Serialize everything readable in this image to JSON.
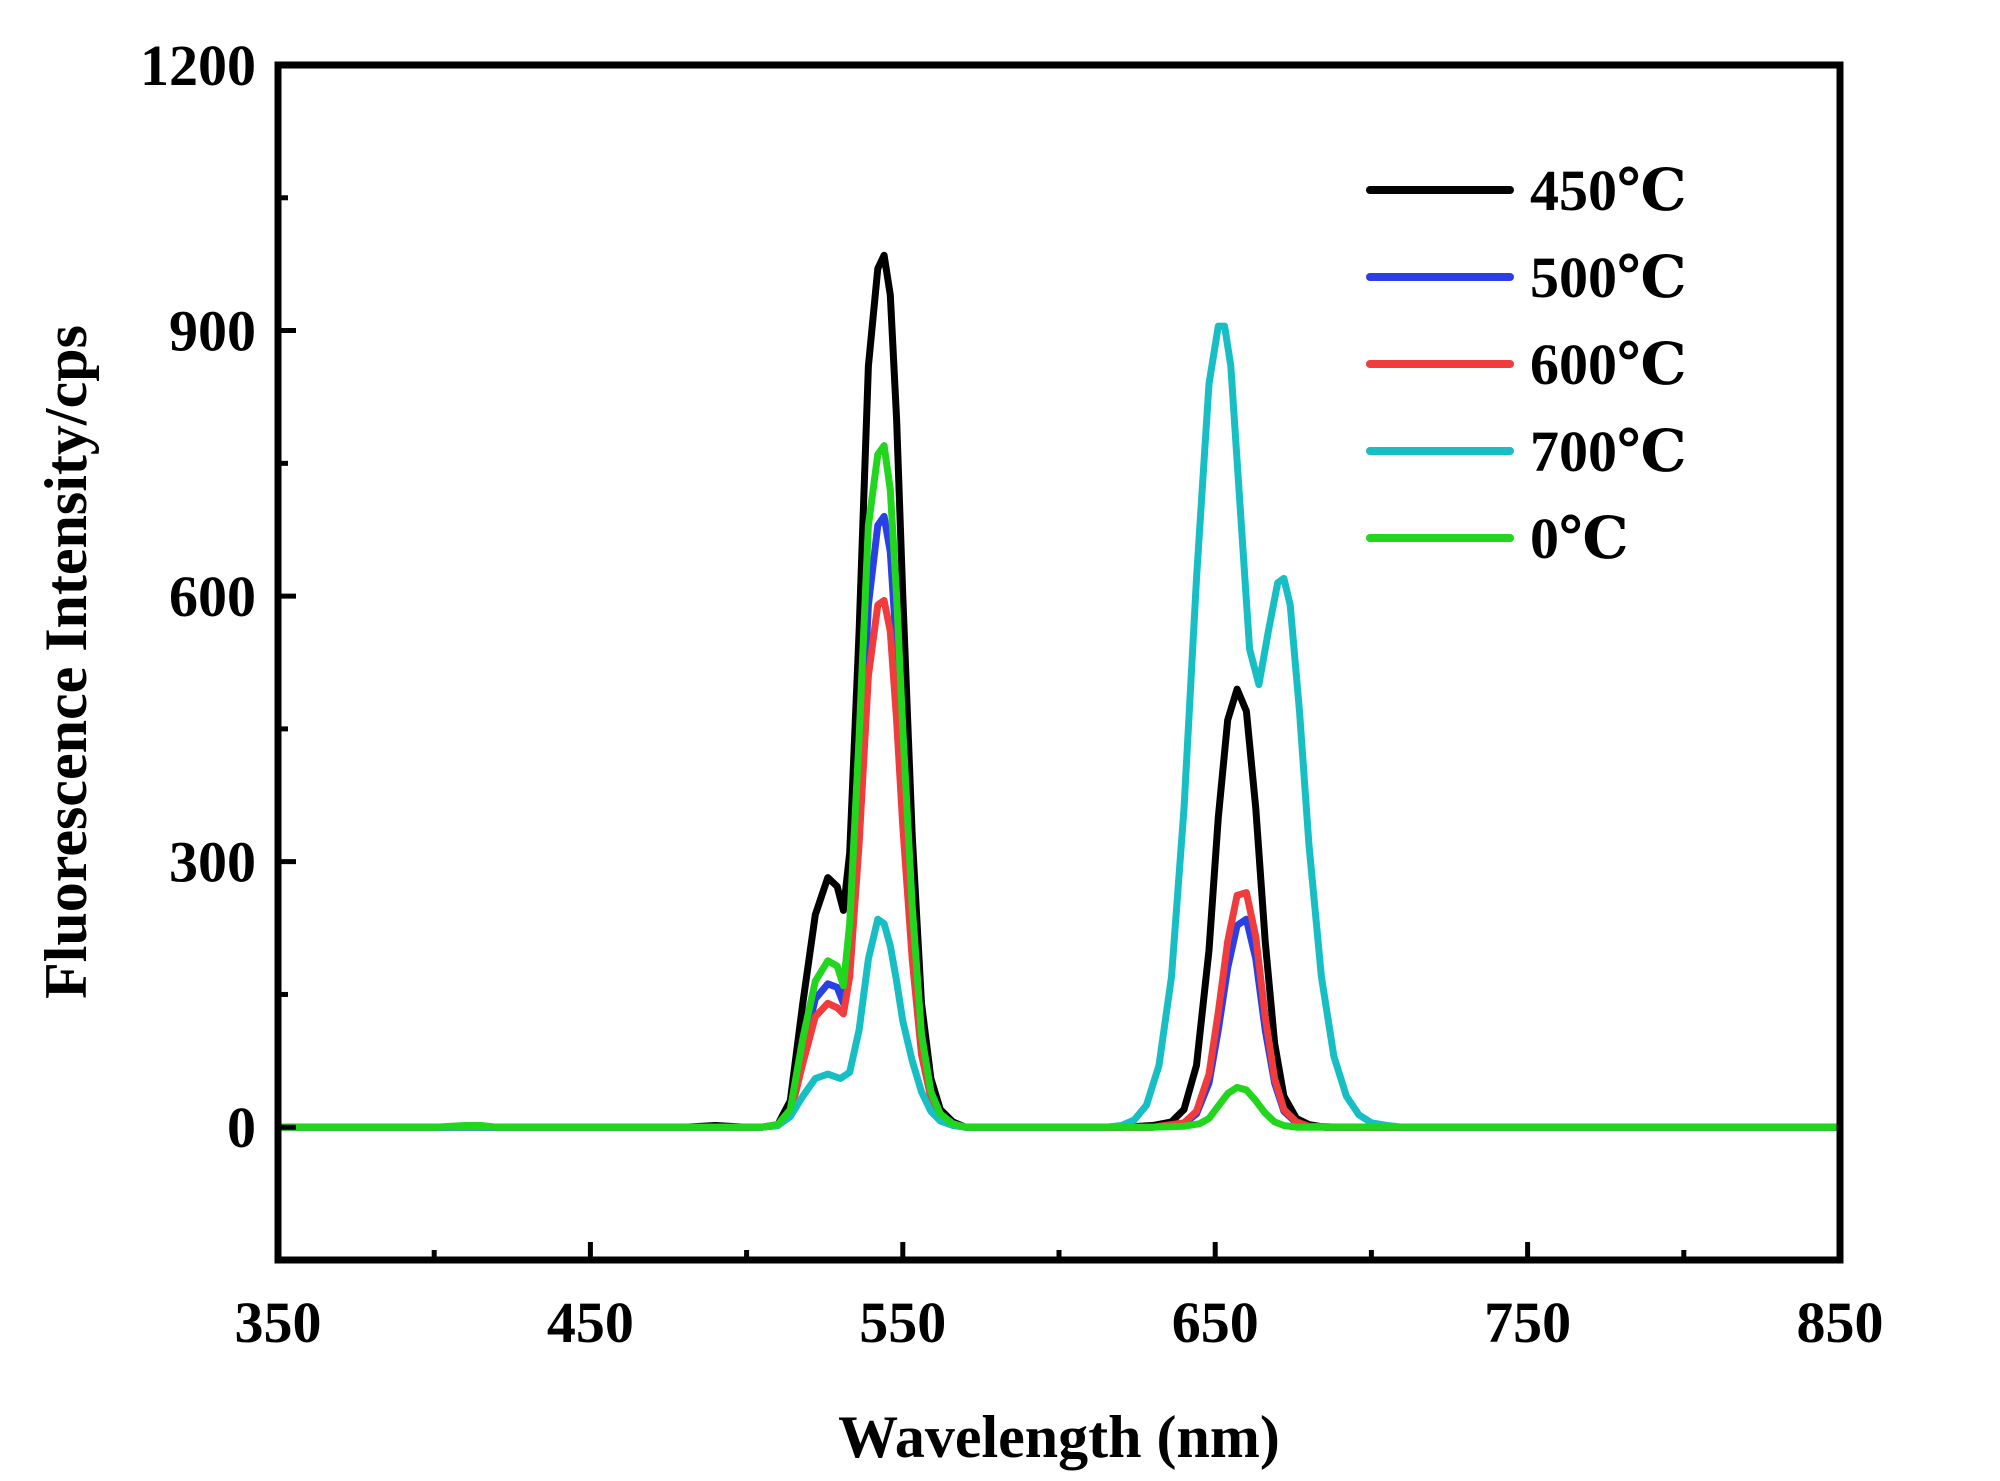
{
  "chart_data": {
    "type": "line",
    "title": "",
    "xlabel": "Wavelength (nm)",
    "ylabel": "Fluorescence Intensity/cps",
    "xlim": [
      350,
      850
    ],
    "ylim": [
      -150,
      1200
    ],
    "xticks": [
      350,
      450,
      550,
      650,
      750,
      850
    ],
    "xtick_labels": [
      "350",
      "450",
      "550",
      "650",
      "750",
      "850"
    ],
    "yticks": [
      0,
      300,
      600,
      900,
      1200
    ],
    "ytick_labels": [
      "0",
      "300",
      "600",
      "900",
      "1200"
    ],
    "grid": false,
    "legend_position": "top-right",
    "series": [
      {
        "name": "450℃",
        "color": "#000000",
        "x": [
          350,
          400,
          480,
          490,
          500,
          505,
          510,
          514,
          518,
          522,
          526,
          529,
          531,
          533,
          536,
          539,
          542,
          544,
          546,
          548,
          550,
          553,
          556,
          559,
          562,
          566,
          570,
          580,
          600,
          620,
          630,
          636,
          640,
          644,
          648,
          651,
          654,
          657,
          660,
          663,
          666,
          669,
          672,
          676,
          680,
          685,
          690,
          700,
          850
        ],
        "values": [
          0,
          0,
          0,
          2,
          0,
          0,
          3,
          30,
          140,
          240,
          282,
          272,
          245,
          310,
          560,
          860,
          970,
          985,
          940,
          800,
          600,
          330,
          140,
          55,
          20,
          6,
          0,
          0,
          0,
          0,
          2,
          6,
          20,
          70,
          200,
          350,
          460,
          495,
          470,
          360,
          210,
          95,
          35,
          10,
          3,
          0,
          0,
          0,
          0
        ]
      },
      {
        "name": "500℃",
        "color": "#2a3fe6",
        "x": [
          350,
          400,
          500,
          505,
          510,
          514,
          518,
          522,
          526,
          529,
          531,
          533,
          536,
          539,
          542,
          544,
          546,
          548,
          550,
          553,
          556,
          559,
          562,
          566,
          570,
          600,
          630,
          640,
          644,
          648,
          651,
          654,
          657,
          660,
          663,
          666,
          669,
          672,
          676,
          680,
          690,
          850
        ],
        "values": [
          0,
          0,
          0,
          0,
          2,
          18,
          85,
          145,
          162,
          158,
          140,
          200,
          380,
          590,
          680,
          690,
          650,
          540,
          400,
          220,
          95,
          38,
          14,
          4,
          0,
          0,
          0,
          4,
          15,
          50,
          110,
          180,
          228,
          235,
          190,
          110,
          50,
          18,
          5,
          1,
          0,
          0
        ]
      },
      {
        "name": "600℃",
        "color": "#f03c3c",
        "x": [
          350,
          400,
          500,
          505,
          510,
          514,
          518,
          522,
          526,
          529,
          531,
          533,
          536,
          539,
          542,
          544,
          546,
          548,
          550,
          553,
          556,
          559,
          562,
          566,
          570,
          600,
          630,
          640,
          644,
          648,
          651,
          654,
          657,
          660,
          663,
          666,
          669,
          672,
          676,
          680,
          690,
          850
        ],
        "values": [
          0,
          0,
          0,
          0,
          2,
          15,
          72,
          125,
          140,
          135,
          128,
          170,
          320,
          510,
          590,
          595,
          560,
          460,
          340,
          190,
          82,
          33,
          12,
          3,
          0,
          0,
          0,
          5,
          18,
          60,
          130,
          210,
          262,
          265,
          215,
          125,
          55,
          20,
          6,
          1,
          0,
          0
        ]
      },
      {
        "name": "700℃",
        "color": "#17bfc4",
        "x": [
          350,
          400,
          500,
          505,
          510,
          514,
          518,
          522,
          526,
          530,
          533,
          536,
          539,
          542,
          544,
          546,
          548,
          550,
          553,
          556,
          559,
          562,
          566,
          570,
          580,
          600,
          615,
          620,
          624,
          628,
          632,
          636,
          640,
          644,
          648,
          651,
          653,
          655,
          658,
          661,
          664,
          667,
          670,
          672,
          674,
          677,
          680,
          684,
          688,
          692,
          696,
          700,
          705,
          710,
          720,
          850
        ],
        "values": [
          0,
          0,
          0,
          0,
          2,
          12,
          35,
          55,
          60,
          55,
          62,
          110,
          190,
          235,
          230,
          205,
          165,
          120,
          75,
          40,
          18,
          7,
          2,
          0,
          0,
          0,
          0,
          2,
          8,
          25,
          70,
          170,
          360,
          620,
          840,
          905,
          905,
          860,
          700,
          540,
          500,
          560,
          615,
          620,
          590,
          470,
          320,
          170,
          80,
          35,
          14,
          5,
          2,
          0,
          0,
          0
        ]
      },
      {
        "name": "0℃",
        "color": "#22d61e",
        "x": [
          350,
          400,
          410,
          415,
          420,
          500,
          505,
          510,
          514,
          518,
          522,
          526,
          529,
          531,
          533,
          536,
          539,
          542,
          544,
          546,
          548,
          550,
          553,
          556,
          559,
          562,
          566,
          570,
          600,
          630,
          640,
          645,
          648,
          651,
          654,
          657,
          660,
          663,
          666,
          669,
          672,
          676,
          680,
          690,
          850
        ],
        "values": [
          0,
          0,
          2,
          2,
          0,
          0,
          0,
          3,
          20,
          100,
          165,
          188,
          182,
          160,
          230,
          440,
          680,
          760,
          770,
          720,
          600,
          450,
          250,
          105,
          40,
          15,
          4,
          0,
          0,
          0,
          1,
          4,
          10,
          24,
          38,
          45,
          42,
          30,
          16,
          6,
          2,
          0,
          0,
          0,
          0
        ]
      }
    ]
  }
}
